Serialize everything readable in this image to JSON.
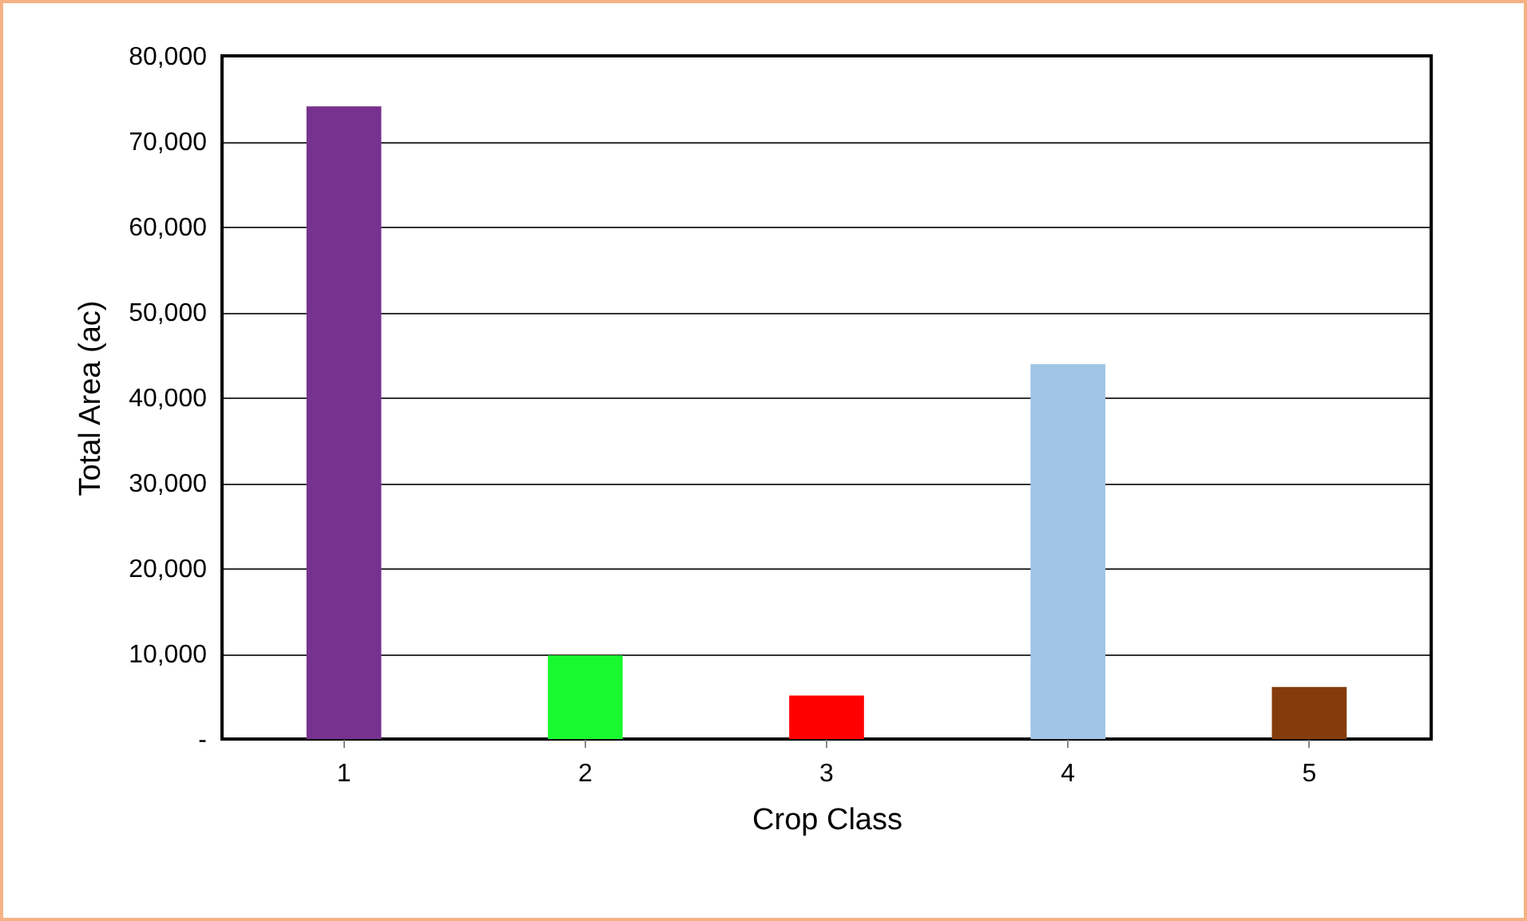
{
  "chart_data": {
    "type": "bar",
    "xlabel": "Crop Class",
    "ylabel": "Total Area (ac)",
    "categories": [
      "1",
      "2",
      "3",
      "4",
      "5"
    ],
    "values": [
      74100,
      9800,
      5100,
      43900,
      6100
    ],
    "colors": [
      "#77328f",
      "#19f92f",
      "#ff0000",
      "#9fc4e6",
      "#843c0c"
    ],
    "ylim": [
      0,
      80000
    ],
    "yticks": [
      {
        "value": 0,
        "label": "-"
      },
      {
        "value": 10000,
        "label": "10,000"
      },
      {
        "value": 20000,
        "label": "20,000"
      },
      {
        "value": 30000,
        "label": "30,000"
      },
      {
        "value": 40000,
        "label": "40,000"
      },
      {
        "value": 50000,
        "label": "50,000"
      },
      {
        "value": 60000,
        "label": "60,000"
      },
      {
        "value": 70000,
        "label": "70,000"
      },
      {
        "value": 80000,
        "label": "80,000"
      }
    ],
    "grid": "y"
  }
}
